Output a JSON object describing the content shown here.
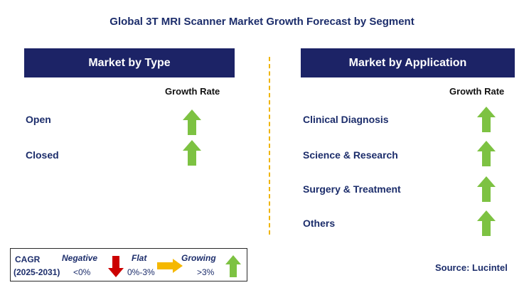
{
  "title": "Global 3T MRI Scanner Market Growth Forecast by Segment",
  "type_panel": {
    "header": "Market by Type",
    "column_label": "Growth Rate",
    "rows": [
      {
        "label": "Open",
        "trend": "growing"
      },
      {
        "label": "Closed",
        "trend": "growing"
      }
    ]
  },
  "application_panel": {
    "header": "Market by Application",
    "column_label": "Growth Rate",
    "rows": [
      {
        "label": "Clinical Diagnosis",
        "trend": "growing"
      },
      {
        "label": "Science & Research",
        "trend": "growing"
      },
      {
        "label": "Surgery & Treatment",
        "trend": "growing"
      },
      {
        "label": "Others",
        "trend": "growing"
      }
    ]
  },
  "legend": {
    "cagr_label": "CAGR",
    "period": "(2025-2031)",
    "negative": {
      "label": "Negative",
      "range": "<0%",
      "color": "#cc0000",
      "icon": "down-arrow-icon"
    },
    "flat": {
      "label": "Flat",
      "range": "0%-3%",
      "color": "#f5b800",
      "icon": "right-arrow-icon"
    },
    "growing": {
      "label": "Growing",
      "range": ">3%",
      "color": "#7dc242",
      "icon": "up-arrow-icon"
    }
  },
  "source": "Source: Lucintel",
  "colors": {
    "header_bg": "#1c2366",
    "divider": "#f0b400",
    "growth_arrow": "#7dc242"
  }
}
